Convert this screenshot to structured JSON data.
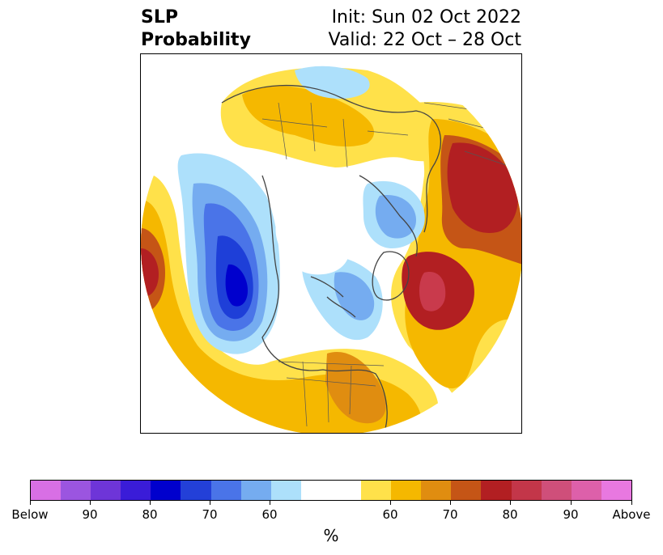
{
  "title": {
    "left_line1": "SLP",
    "left_line2": "Probability",
    "right_line1": "Init: Sun 02 Oct 2022",
    "right_line2": "Valid: 22 Oct – 28 Oct"
  },
  "map": {
    "projection": "north-polar-stereographic",
    "field": "SLP probability tercile",
    "colors": {
      "below_70": "#0000cd",
      "below_60": "#1e3fd8",
      "below_50": "#4a74e8",
      "below_40": "#75acf0",
      "below_33": "#ade0fb",
      "above_33": "#ffe14a",
      "above_40": "#f5b800",
      "above_50": "#e08d10",
      "above_60": "#c55516",
      "above_70": "#b21f22",
      "above_80": "#c93a4c"
    }
  },
  "colorbar": {
    "colors": [
      "#d86fe5",
      "#9b55e0",
      "#6e35d8",
      "#3a1cd8",
      "#0000cd",
      "#2340d8",
      "#4a74e8",
      "#75acf0",
      "#ade0fb",
      "#ffffff",
      "#ffe14a",
      "#f5b800",
      "#e08d10",
      "#c55516",
      "#b21f22",
      "#c33649",
      "#cf4f7a",
      "#dd60aa",
      "#e878e0"
    ],
    "tick_labels": [
      "Below",
      "90",
      "80",
      "70",
      "60",
      "60",
      "70",
      "80",
      "90",
      "Above"
    ],
    "unit": "%"
  }
}
